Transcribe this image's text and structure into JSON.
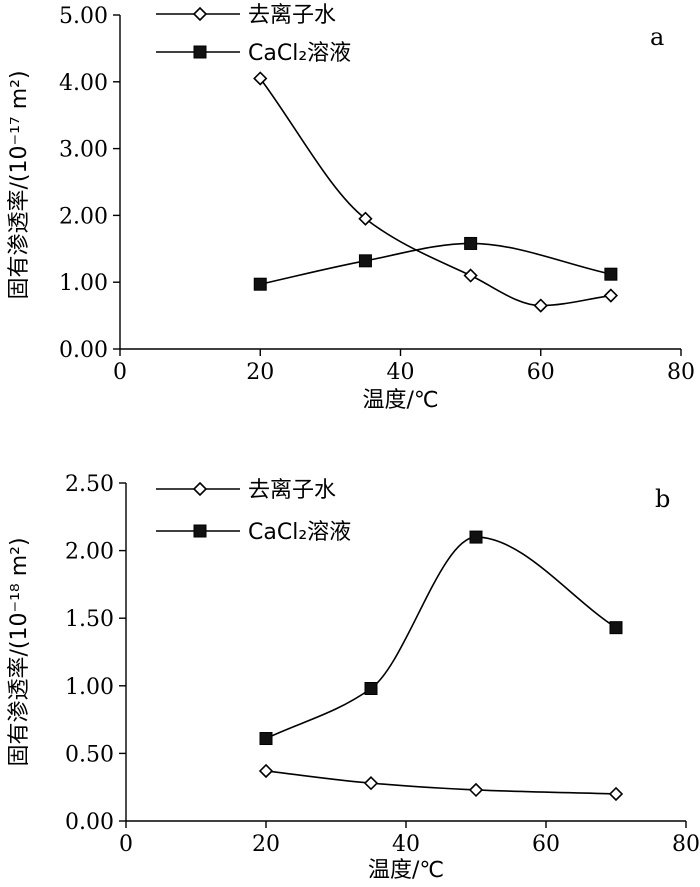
{
  "chart_data": [
    {
      "type": "line",
      "panel_label": "a",
      "xlabel": "温度/℃",
      "ylabel": "固有渗透率/(10⁻¹⁷ m²)",
      "xlim": [
        0,
        80
      ],
      "ylim": [
        0,
        5
      ],
      "x_ticks": [
        0,
        20,
        40,
        60,
        80
      ],
      "y_ticks": [
        0,
        1,
        2,
        3,
        4,
        5
      ],
      "x_tick_labels": [
        "0",
        "20",
        "40",
        "60",
        "80"
      ],
      "y_tick_labels": [
        "0.00",
        "1.00",
        "2.00",
        "3.00",
        "4.00",
        "5.00"
      ],
      "grid": false,
      "legend_position": "top-left",
      "series": [
        {
          "name": "去离子水",
          "marker": "open-diamond",
          "x": [
            20,
            35,
            50,
            60,
            70
          ],
          "y": [
            4.05,
            1.95,
            1.1,
            0.65,
            0.8
          ]
        },
        {
          "name": "CaCl₂溶液",
          "marker": "filled-square",
          "x": [
            20,
            35,
            50,
            70
          ],
          "y": [
            0.97,
            1.32,
            1.58,
            1.12
          ]
        }
      ]
    },
    {
      "type": "line",
      "panel_label": "b",
      "xlabel": "温度/℃",
      "ylabel": "固有渗透率/(10⁻¹⁸ m²)",
      "xlim": [
        0,
        80
      ],
      "ylim": [
        0,
        2.5
      ],
      "x_ticks": [
        0,
        20,
        40,
        60,
        80
      ],
      "y_ticks": [
        0,
        0.5,
        1,
        1.5,
        2,
        2.5
      ],
      "x_tick_labels": [
        "0",
        "20",
        "40",
        "60",
        "80"
      ],
      "y_tick_labels": [
        "0.00",
        "0.50",
        "1.00",
        "1.50",
        "2.00",
        "2.50"
      ],
      "grid": false,
      "legend_position": "top-left",
      "series": [
        {
          "name": "去离子水",
          "marker": "open-diamond",
          "x": [
            20,
            35,
            50,
            70
          ],
          "y": [
            0.37,
            0.28,
            0.23,
            0.2
          ]
        },
        {
          "name": "CaCl₂溶液",
          "marker": "filled-square",
          "x": [
            20,
            35,
            50,
            70
          ],
          "y": [
            0.61,
            0.98,
            2.1,
            1.43
          ]
        }
      ]
    }
  ]
}
